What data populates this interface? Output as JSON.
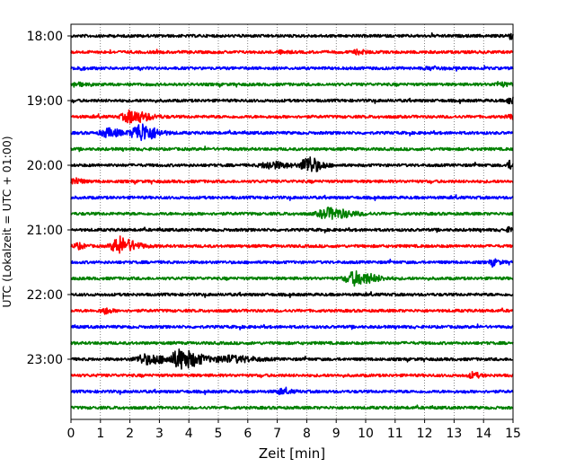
{
  "chart_data": {
    "type": "line",
    "title": "",
    "xlabel": "Zeit  [min]",
    "ylabel": "UTC (Lokalzeit = UTC + 01:00)",
    "xlim": [
      0,
      15
    ],
    "x_ticks": [
      "0",
      "1",
      "2",
      "3",
      "4",
      "5",
      "6",
      "7",
      "8",
      "9",
      "10",
      "11",
      "12",
      "13",
      "14",
      "15"
    ],
    "y_ticks": [
      "18:00",
      "19:00",
      "20:00",
      "21:00",
      "22:00",
      "23:00"
    ],
    "grid": "vertical dotted lines at each minute",
    "line_colors": [
      "#000000",
      "#ff0000",
      "#0000ff",
      "#008000"
    ],
    "traces": [
      {
        "start": "18:00",
        "color": "#000000",
        "events": [
          [
            14.9,
            0.4,
            0.3
          ]
        ]
      },
      {
        "start": "18:15",
        "color": "#ff0000",
        "events": [
          [
            7.1,
            0.15,
            0.25
          ],
          [
            9.7,
            0.25,
            0.25
          ]
        ]
      },
      {
        "start": "18:30",
        "color": "#0000ff",
        "events": [
          [
            0.2,
            0.2,
            0.2
          ],
          [
            12.2,
            0.2,
            0.3
          ]
        ]
      },
      {
        "start": "18:45",
        "color": "#008000",
        "events": [
          [
            0.1,
            0.3,
            0.2
          ],
          [
            14.5,
            0.25,
            0.3
          ]
        ]
      },
      {
        "start": "19:00",
        "color": "#000000",
        "events": [
          [
            14.9,
            0.5,
            0.2
          ]
        ]
      },
      {
        "start": "19:15",
        "color": "#ff0000",
        "events": [
          [
            2.0,
            0.9,
            0.5
          ],
          [
            14.9,
            0.3,
            0.2
          ]
        ]
      },
      {
        "start": "19:30",
        "color": "#0000ff",
        "events": [
          [
            2.3,
            1.4,
            0.45
          ],
          [
            1.2,
            0.6,
            0.4
          ]
        ]
      },
      {
        "start": "19:45",
        "color": "#008000",
        "events": []
      },
      {
        "start": "20:00",
        "color": "#000000",
        "events": [
          [
            8.0,
            1.3,
            0.35
          ],
          [
            6.7,
            0.5,
            0.5
          ],
          [
            14.9,
            0.6,
            0.2
          ]
        ]
      },
      {
        "start": "20:15",
        "color": "#ff0000",
        "events": [
          [
            0.1,
            0.5,
            0.2
          ]
        ]
      },
      {
        "start": "20:30",
        "color": "#0000ff",
        "events": []
      },
      {
        "start": "20:45",
        "color": "#008000",
        "events": [
          [
            8.7,
            0.8,
            0.6
          ]
        ]
      },
      {
        "start": "21:00",
        "color": "#000000",
        "events": [
          [
            14.9,
            0.4,
            0.2
          ]
        ]
      },
      {
        "start": "21:15",
        "color": "#ff0000",
        "events": [
          [
            1.6,
            1.2,
            0.45
          ],
          [
            0.2,
            0.4,
            0.2
          ]
        ]
      },
      {
        "start": "21:30",
        "color": "#0000ff",
        "events": [
          [
            14.3,
            0.4,
            0.2
          ]
        ]
      },
      {
        "start": "21:45",
        "color": "#008000",
        "events": [
          [
            9.6,
            1.0,
            0.55
          ]
        ]
      },
      {
        "start": "22:00",
        "color": "#000000",
        "events": []
      },
      {
        "start": "22:15",
        "color": "#ff0000",
        "events": [
          [
            1.1,
            0.4,
            0.2
          ]
        ]
      },
      {
        "start": "22:30",
        "color": "#0000ff",
        "events": []
      },
      {
        "start": "22:45",
        "color": "#008000",
        "events": []
      },
      {
        "start": "23:00",
        "color": "#000000",
        "events": [
          [
            3.7,
            1.4,
            0.55
          ],
          [
            2.5,
            0.7,
            0.6
          ],
          [
            5.3,
            0.5,
            0.7
          ]
        ]
      },
      {
        "start": "23:15",
        "color": "#ff0000",
        "events": [
          [
            13.6,
            0.4,
            0.2
          ]
        ]
      },
      {
        "start": "23:30",
        "color": "#0000ff",
        "events": [
          [
            7.1,
            0.3,
            0.3
          ]
        ]
      },
      {
        "start": "23:45",
        "color": "#008000",
        "events": []
      }
    ]
  }
}
